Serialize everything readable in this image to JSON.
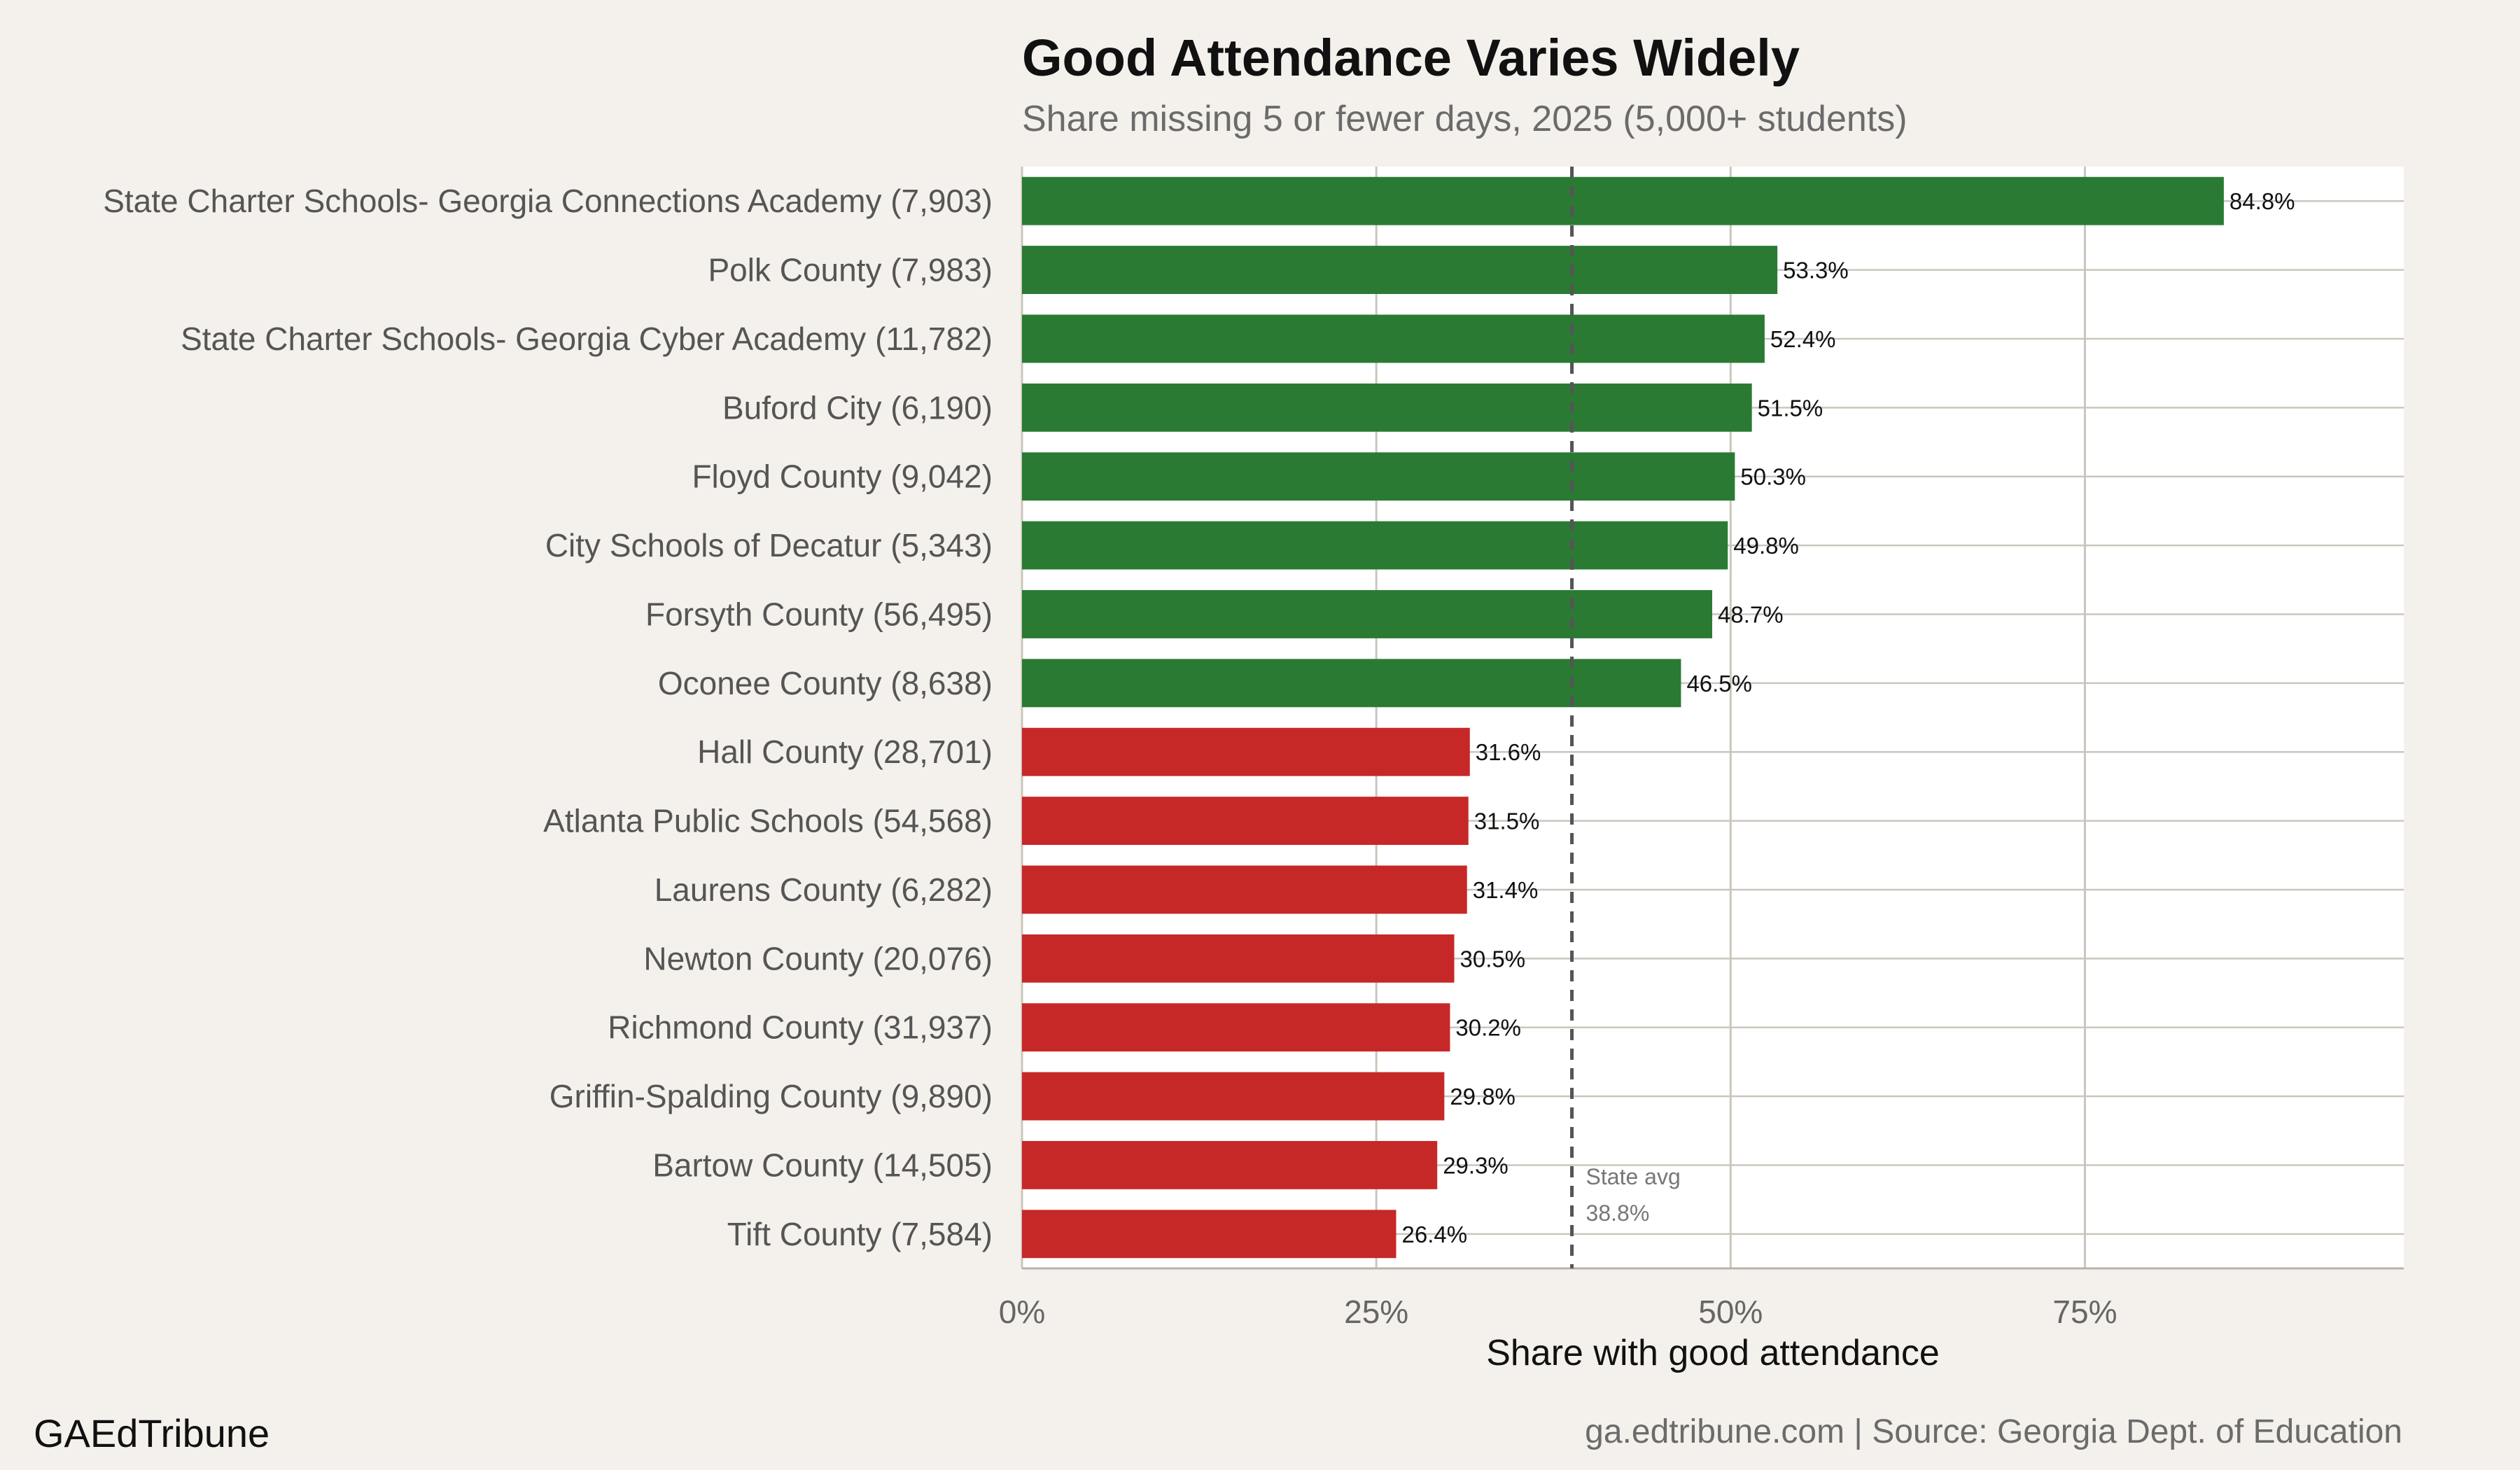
{
  "chart_data": {
    "type": "bar",
    "orientation": "horizontal",
    "title": "Good Attendance Varies Widely",
    "subtitle": "Share missing 5 or fewer days, 2025 (5,000+ students)",
    "xlabel": "Share with good attendance",
    "ylabel": "",
    "xlim": [
      0,
      97.5
    ],
    "x_ticks": [
      "0%",
      "25%",
      "50%",
      "75%"
    ],
    "x_tick_values": [
      0,
      25,
      50,
      75
    ],
    "grid": true,
    "categories": [
      "State Charter Schools- Georgia Connections Academy (7,903)",
      "Polk County (7,983)",
      "State Charter Schools- Georgia Cyber Academy (11,782)",
      "Buford City (6,190)",
      "Floyd County (9,042)",
      "City Schools of Decatur (5,343)",
      "Forsyth County (56,495)",
      "Oconee County (8,638)",
      "Hall County (28,701)",
      "Atlanta Public Schools (54,568)",
      "Laurens County (6,282)",
      "Newton County (20,076)",
      "Richmond County (31,937)",
      "Griffin-Spalding County (9,890)",
      "Bartow County (14,505)",
      "Tift County (7,584)"
    ],
    "values": [
      84.8,
      53.3,
      52.4,
      51.5,
      50.3,
      49.8,
      48.7,
      46.5,
      31.6,
      31.5,
      31.4,
      30.5,
      30.2,
      29.8,
      29.3,
      26.4
    ],
    "value_labels": [
      "84.8%",
      "53.3%",
      "52.4%",
      "51.5%",
      "50.3%",
      "49.8%",
      "48.7%",
      "46.5%",
      "31.6%",
      "31.5%",
      "31.4%",
      "30.5%",
      "30.2%",
      "29.8%",
      "29.3%",
      "26.4%"
    ],
    "bar_colors": [
      "#2a7a33",
      "#2a7a33",
      "#2a7a33",
      "#2a7a33",
      "#2a7a33",
      "#2a7a33",
      "#2a7a33",
      "#2a7a33",
      "#c62828",
      "#c62828",
      "#c62828",
      "#c62828",
      "#c62828",
      "#c62828",
      "#c62828",
      "#c62828"
    ],
    "reference_line": {
      "value": 38.8,
      "label_line1": "State avg",
      "label_line2": "38.8%",
      "style": "dashed"
    }
  },
  "footer": {
    "brand": "GAEdTribune",
    "source": "ga.edtribune.com | Source: Georgia Dept. of Education"
  },
  "colors": {
    "background": "#f4f1ec",
    "panel": "#ffffff",
    "gridline": "#cbc6bd",
    "above_avg": "#2a7a33",
    "below_avg": "#c62828",
    "reference_line": "#555555"
  }
}
